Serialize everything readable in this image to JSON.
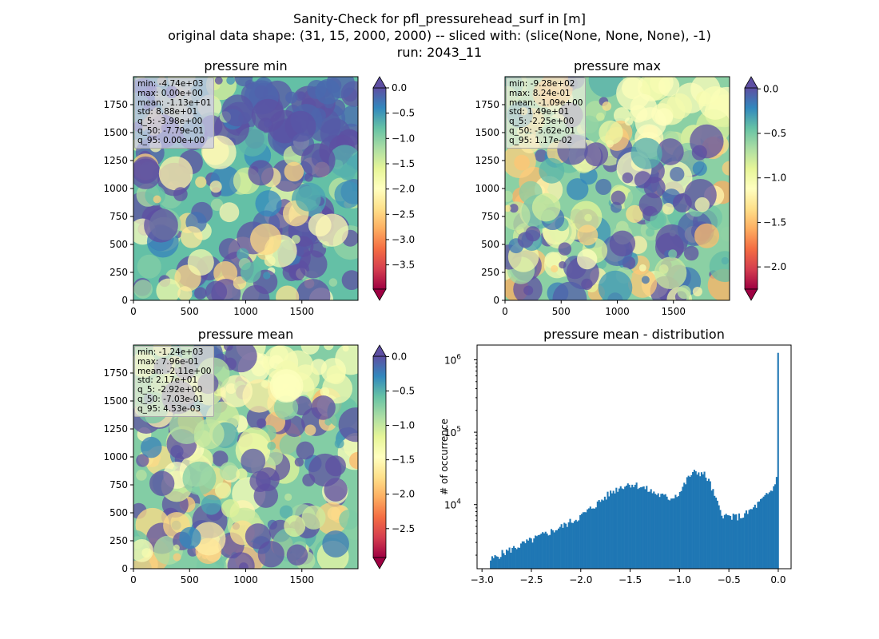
{
  "figure": {
    "suptitle_line1": "Sanity-Check for pfl_pressurehead_surf in [m]",
    "suptitle_line2": "original data shape: (31, 15, 2000, 2000) -- sliced with: (slice(None, None, None), -1)",
    "suptitle_line3": "run: 2043_11"
  },
  "colors": {
    "hist_bar": "#1f77b4",
    "spectral": [
      "#9e0142",
      "#d53e4f",
      "#f46d43",
      "#fdae61",
      "#fee08b",
      "#ffffbf",
      "#e6f598",
      "#abdda4",
      "#66c2a5",
      "#3288bd",
      "#5e4fa2"
    ]
  },
  "chart_data": [
    {
      "type": "heatmap",
      "title": "pressure min",
      "colormap": "Spectral",
      "xticks": [
        "0",
        "500",
        "1000",
        "1500"
      ],
      "yticks": [
        "0",
        "250",
        "500",
        "750",
        "1000",
        "1250",
        "1500",
        "1750"
      ],
      "xlim": [
        0,
        2000
      ],
      "ylim": [
        0,
        2000
      ],
      "colorbar": {
        "range": [
          -3.98,
          0.0
        ],
        "ticks": [
          "0.0",
          "−0.5",
          "−1.0",
          "−1.5",
          "−2.0",
          "−2.5",
          "−3.0",
          "−3.5"
        ],
        "tick_values": [
          0.0,
          -0.5,
          -1.0,
          -1.5,
          -2.0,
          -2.5,
          -3.0,
          -3.5
        ],
        "extend": "both"
      },
      "stats": {
        "min": "min: -4.74e+03",
        "max": "max: 0.00e+00",
        "mean": "mean: -1.13e+01",
        "std": "std: 8.88e+01",
        "q_5": "q_5: -3.98e+00",
        "q_50": "q_50: -7.79e-01",
        "q_95": "q_95: 0.00e+00"
      }
    },
    {
      "type": "heatmap",
      "title": "pressure max",
      "colormap": "Spectral",
      "xticks": [
        "0",
        "500",
        "1000",
        "1500"
      ],
      "yticks": [
        "0",
        "250",
        "500",
        "750",
        "1000",
        "1250",
        "1500",
        "1750"
      ],
      "xlim": [
        0,
        2000
      ],
      "ylim": [
        0,
        2000
      ],
      "colorbar": {
        "range": [
          -2.25,
          0.0117
        ],
        "ticks": [
          "0.0",
          "−0.5",
          "−1.0",
          "−1.5",
          "−2.0"
        ],
        "tick_values": [
          0.0,
          -0.5,
          -1.0,
          -1.5,
          -2.0
        ],
        "extend": "both"
      },
      "stats": {
        "min": "min: -9.28e+02",
        "max": "max: 8.24e-01",
        "mean": "mean: -1.09e+00",
        "std": "std: 1.49e+01",
        "q_5": "q_5: -2.25e+00",
        "q_50": "q_50: -5.62e-01",
        "q_95": "q_95: 1.17e-02"
      }
    },
    {
      "type": "heatmap",
      "title": "pressure mean",
      "colormap": "Spectral",
      "xticks": [
        "0",
        "500",
        "1000",
        "1500"
      ],
      "yticks": [
        "0",
        "250",
        "500",
        "750",
        "1000",
        "1250",
        "1500",
        "1750"
      ],
      "xlim": [
        0,
        2000
      ],
      "ylim": [
        0,
        2000
      ],
      "colorbar": {
        "range": [
          -2.92,
          0.00453
        ],
        "ticks": [
          "0.0",
          "−0.5",
          "−1.0",
          "−1.5",
          "−2.0",
          "−2.5"
        ],
        "tick_values": [
          0.0,
          -0.5,
          -1.0,
          -1.5,
          -2.0,
          -2.5
        ],
        "extend": "both"
      },
      "stats": {
        "min": "min: -1.24e+03",
        "max": "max: 7.96e-01",
        "mean": "mean: -2.11e+00",
        "std": "std: 2.17e+01",
        "q_5": "q_5: -2.92e+00",
        "q_50": "q_50: -7.03e-01",
        "q_95": "q_95: 4.53e-03"
      }
    },
    {
      "type": "bar",
      "title": "pressure mean - distribution",
      "ylabel": "# of occurrence",
      "yscale": "log",
      "xlim": [
        -3.05,
        0.13
      ],
      "ylim": [
        1300,
        1600000
      ],
      "xticks": [
        "−3.0",
        "−2.5",
        "−2.0",
        "−1.5",
        "−1.0",
        "−0.5",
        "0.0"
      ],
      "xtick_values": [
        -3.0,
        -2.5,
        -2.0,
        -1.5,
        -1.0,
        -0.5,
        0.0
      ],
      "yticks": [
        {
          "base": "10",
          "exp": "4",
          "value": 10000
        },
        {
          "base": "10",
          "exp": "5",
          "value": 100000
        },
        {
          "base": "10",
          "exp": "6",
          "value": 1000000
        }
      ],
      "bins": {
        "start": -2.92,
        "end": 0.0045,
        "count": 200
      },
      "profile": [
        [
          -2.92,
          1700
        ],
        [
          -2.8,
          2100
        ],
        [
          -2.6,
          2800
        ],
        [
          -2.4,
          3700
        ],
        [
          -2.2,
          4900
        ],
        [
          -2.0,
          6900
        ],
        [
          -1.8,
          11200
        ],
        [
          -1.7,
          14500
        ],
        [
          -1.6,
          17500
        ],
        [
          -1.5,
          19500
        ],
        [
          -1.4,
          18000
        ],
        [
          -1.3,
          15500
        ],
        [
          -1.2,
          13500
        ],
        [
          -1.1,
          12200
        ],
        [
          -1.0,
          14500
        ],
        [
          -0.95,
          19000
        ],
        [
          -0.9,
          25000
        ],
        [
          -0.85,
          27500
        ],
        [
          -0.8,
          28000
        ],
        [
          -0.75,
          26000
        ],
        [
          -0.7,
          21000
        ],
        [
          -0.65,
          13500
        ],
        [
          -0.6,
          9000
        ],
        [
          -0.55,
          7000
        ],
        [
          -0.45,
          6700
        ],
        [
          -0.35,
          7000
        ],
        [
          -0.25,
          9000
        ],
        [
          -0.15,
          12000
        ],
        [
          -0.06,
          16000
        ],
        [
          -0.02,
          22000
        ],
        [
          -0.006,
          30000
        ],
        [
          0.0045,
          1250000
        ]
      ]
    }
  ]
}
